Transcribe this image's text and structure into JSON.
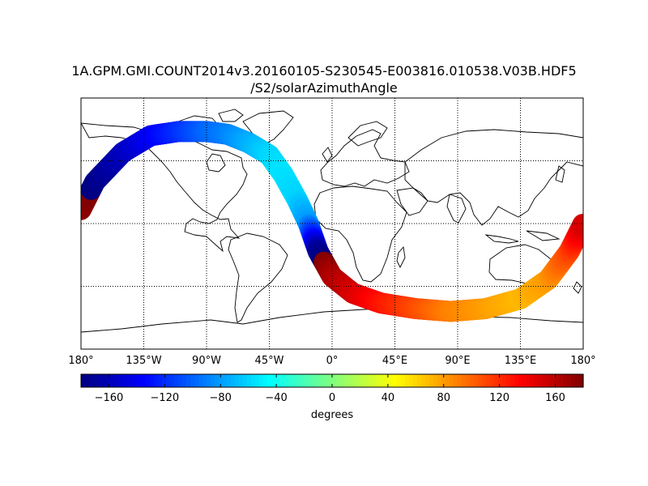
{
  "title": "1A.GPM.GMI.COUNT2014v3.20160105-S230545-E003816.010538.V03B.HDF5",
  "subtitle": "/S2/solarAzimuthAngle",
  "map": {
    "projection": "cylindrical",
    "lon_range": [
      -180,
      180
    ],
    "lat_range": [
      -90,
      90
    ],
    "grid": true,
    "lon_ticks": [
      {
        "value": -180,
        "label": "180°"
      },
      {
        "value": -135,
        "label": "135°W"
      },
      {
        "value": -90,
        "label": "90°W"
      },
      {
        "value": -45,
        "label": "45°W"
      },
      {
        "value": 0,
        "label": "0°"
      },
      {
        "value": 45,
        "label": "45°E"
      },
      {
        "value": 90,
        "label": "90°E"
      },
      {
        "value": 135,
        "label": "135°E"
      },
      {
        "value": 180,
        "label": "180°"
      }
    ],
    "lat_gridlines": [
      -45,
      0,
      45
    ]
  },
  "chart_data": {
    "type": "heatmap",
    "variable": "solarAzimuthAngle",
    "swath_width_deg": 15,
    "track": [
      {
        "lon": -180,
        "lat": 10,
        "value": 175
      },
      {
        "lon": -170,
        "lat": 30,
        "value": -178
      },
      {
        "lon": -150,
        "lat": 51,
        "value": -160
      },
      {
        "lon": -130,
        "lat": 63,
        "value": -140
      },
      {
        "lon": -110,
        "lat": 66,
        "value": -120
      },
      {
        "lon": -90,
        "lat": 66,
        "value": -100
      },
      {
        "lon": -75,
        "lat": 64,
        "value": -90
      },
      {
        "lon": -60,
        "lat": 58,
        "value": -75
      },
      {
        "lon": -45,
        "lat": 49,
        "value": -60
      },
      {
        "lon": -35,
        "lat": 35,
        "value": -55
      },
      {
        "lon": -25,
        "lat": 17,
        "value": -60
      },
      {
        "lon": -17,
        "lat": 0,
        "value": -80
      },
      {
        "lon": -10,
        "lat": -20,
        "value": -170
      },
      {
        "lon": 0,
        "lat": -38,
        "value": 165
      },
      {
        "lon": 15,
        "lat": -50,
        "value": 150
      },
      {
        "lon": 35,
        "lat": -57,
        "value": 130
      },
      {
        "lon": 60,
        "lat": -61,
        "value": 110
      },
      {
        "lon": 85,
        "lat": -63,
        "value": 90
      },
      {
        "lon": 110,
        "lat": -61,
        "value": 80
      },
      {
        "lon": 135,
        "lat": -54,
        "value": 70
      },
      {
        "lon": 155,
        "lat": -40,
        "value": 80
      },
      {
        "lon": 170,
        "lat": -20,
        "value": 110
      },
      {
        "lon": 180,
        "lat": 0,
        "value": 150
      }
    ],
    "colorbar": {
      "label": "degrees",
      "range": [
        -180,
        180
      ],
      "ticks": [
        -160,
        -120,
        -80,
        -40,
        0,
        40,
        80,
        120,
        160
      ],
      "tick_labels": [
        "−160",
        "−120",
        "−80",
        "−40",
        "0",
        "40",
        "80",
        "120",
        "160"
      ],
      "colormap": "jet"
    }
  }
}
